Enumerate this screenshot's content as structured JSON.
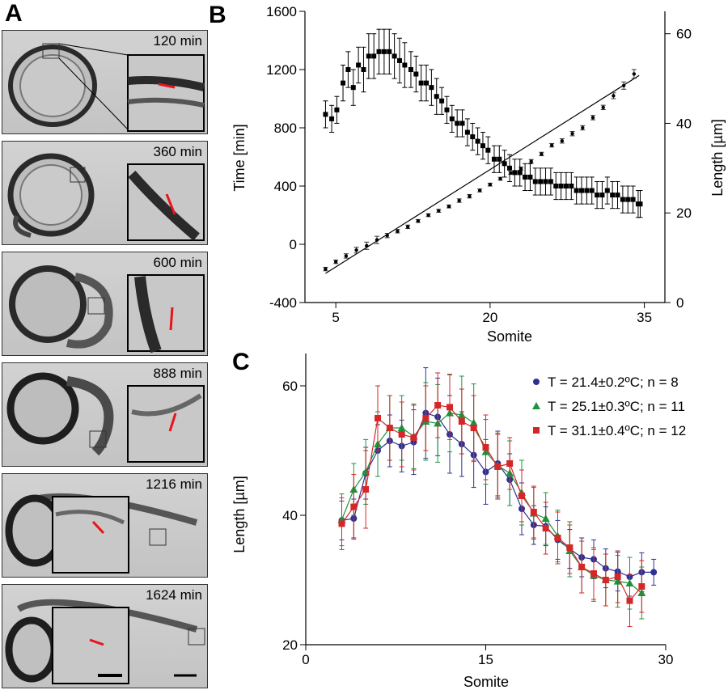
{
  "panels": {
    "a": "A",
    "b": "B",
    "c": "C"
  },
  "micrographs": [
    {
      "label": "120 min"
    },
    {
      "label": "360 min"
    },
    {
      "label": "600 min"
    },
    {
      "label": "888 min"
    },
    {
      "label": "1216 min"
    },
    {
      "label": "1624 min"
    }
  ],
  "chart_data": [
    {
      "type": "scatter",
      "panel": "B",
      "xlabel": "Somite",
      "ylabel": "Time [min]",
      "y2label": "Length [µm]",
      "xlim": [
        2,
        37
      ],
      "ylim": [
        -400,
        1600
      ],
      "y2lim": [
        0,
        65
      ],
      "xticks": [
        5,
        20,
        35
      ],
      "yticks": [
        -400,
        0,
        400,
        800,
        1200,
        1600
      ],
      "y2ticks": [
        0,
        20,
        40,
        60
      ],
      "series": [
        {
          "axis": "left",
          "marker": "dot",
          "x": [
            4,
            5,
            6,
            7,
            8,
            9,
            10,
            11,
            12,
            13,
            14,
            15,
            16,
            17,
            18,
            19,
            20,
            21,
            22,
            23,
            24,
            25,
            26,
            27,
            28,
            29,
            30,
            31,
            32,
            33,
            34
          ],
          "y": [
            -170,
            -120,
            -80,
            -40,
            -10,
            30,
            60,
            90,
            120,
            160,
            200,
            230,
            260,
            300,
            330,
            370,
            410,
            450,
            490,
            520,
            570,
            620,
            680,
            710,
            760,
            800,
            870,
            940,
            1020,
            1090,
            1170
          ],
          "err": [
            12,
            12,
            15,
            20,
            25,
            25,
            15,
            12,
            12,
            10,
            10,
            10,
            10,
            12,
            12,
            10,
            10,
            10,
            10,
            10,
            12,
            12,
            12,
            15,
            15,
            15,
            15,
            15,
            20,
            25,
            30
          ],
          "fit": [
            [
              4,
              -200
            ],
            [
              34.5,
              1160
            ]
          ]
        },
        {
          "axis": "right",
          "marker": "square",
          "x": [
            4,
            4.6,
            5.1,
            5.7,
            6.2,
            6.7,
            7.2,
            7.7,
            8.2,
            8.7,
            9.2,
            9.7,
            10.2,
            10.7,
            11.2,
            11.7,
            12.3,
            12.8,
            13.3,
            13.8,
            14.3,
            14.8,
            15.3,
            15.8,
            16.3,
            16.8,
            17.3,
            17.8,
            18.3,
            18.8,
            19.3,
            19.8,
            20.4,
            20.9,
            21.4,
            21.9,
            22.4,
            22.9,
            23.4,
            23.9,
            24.4,
            24.9,
            25.4,
            25.9,
            26.4,
            26.9,
            27.4,
            27.9,
            28.4,
            28.9,
            29.4,
            29.9,
            30.4,
            30.9,
            31.4,
            31.9,
            32.4,
            32.9,
            33.4,
            33.9,
            34.4,
            34.6
          ],
          "y": [
            42,
            41,
            43,
            49,
            52,
            48,
            53,
            52,
            55,
            55,
            56,
            56,
            56,
            55,
            54,
            53,
            52,
            51,
            49,
            49,
            48,
            46,
            45,
            43,
            41,
            40,
            40,
            38,
            37,
            36,
            35,
            34,
            32,
            32,
            31,
            30,
            29,
            29,
            28,
            28,
            27,
            27,
            27,
            27,
            26,
            26,
            26,
            26,
            25,
            25,
            25,
            25,
            24,
            24,
            25,
            24,
            24,
            23,
            23,
            23,
            22,
            22
          ],
          "err": [
            3,
            3,
            3,
            4,
            4,
            4,
            4,
            5,
            5,
            5,
            5,
            5,
            5,
            5,
            5,
            5,
            4,
            4,
            4,
            4,
            4,
            4,
            3,
            3,
            3,
            3,
            3,
            3,
            3,
            3,
            3,
            3,
            3,
            3,
            3,
            3,
            3,
            3,
            3,
            3,
            3,
            3,
            3,
            3,
            3,
            3,
            3,
            3,
            3,
            3,
            3,
            3,
            3,
            3,
            3,
            3,
            3,
            3,
            3,
            3,
            3,
            3
          ]
        }
      ]
    },
    {
      "type": "line",
      "panel": "C",
      "xlabel": "Somite",
      "ylabel": "Length [µm]",
      "xlim": [
        0,
        30
      ],
      "ylim": [
        20,
        65
      ],
      "xticks": [
        0,
        15,
        30
      ],
      "yticks": [
        20,
        40,
        60
      ],
      "legend_position": "top-right",
      "series": [
        {
          "name": "T = 21.4±0.2ºC; n = 8",
          "color": "#2e3192",
          "marker": "circle",
          "x": [
            3,
            4,
            5,
            6,
            7,
            8,
            9,
            10,
            11,
            12,
            13,
            14,
            15,
            16,
            17,
            18,
            19,
            20,
            21,
            22,
            23,
            24,
            25,
            26,
            27,
            28,
            29
          ],
          "y": [
            39.2,
            39.5,
            46.5,
            50.0,
            51.5,
            50.7,
            51.3,
            55.8,
            55.2,
            52.5,
            51.0,
            49.3,
            46.7,
            48.0,
            45.5,
            41.0,
            38.5,
            38.3,
            36.2,
            34.8,
            33.5,
            33.2,
            31.8,
            31.3,
            30.5,
            31.2,
            31.2
          ],
          "err": [
            3,
            3,
            4,
            4,
            4,
            4,
            5,
            7,
            6,
            6,
            5,
            5,
            5,
            5,
            4,
            4,
            3,
            3,
            3,
            3,
            3,
            3,
            3,
            3,
            3,
            3,
            2
          ]
        },
        {
          "name": "T = 25.1±0.3ºC; n = 11",
          "color": "#1a9641",
          "marker": "triangle",
          "x": [
            3,
            4,
            5,
            6,
            7,
            8,
            9,
            10,
            11,
            12,
            13,
            14,
            15,
            16,
            17,
            18,
            19,
            20,
            21,
            22,
            23,
            24,
            25,
            26,
            27,
            28
          ],
          "y": [
            39.3,
            44.0,
            46.7,
            51.0,
            53.5,
            53.5,
            52.2,
            54.5,
            54.2,
            55.8,
            55.5,
            54.3,
            49.8,
            47.7,
            46.5,
            43.5,
            40.3,
            39.5,
            36.8,
            34.5,
            32.0,
            30.7,
            30.0,
            29.8,
            29.5,
            28.0
          ],
          "err": [
            4,
            4,
            5,
            5,
            5,
            5,
            5,
            6,
            6,
            6,
            6,
            6,
            5,
            5,
            5,
            5,
            4,
            4,
            4,
            4,
            4,
            4,
            4,
            4,
            4,
            4
          ]
        },
        {
          "name": "T = 31.1±0.4ºC; n = 12",
          "color": "#d62728",
          "marker": "square",
          "x": [
            3,
            4,
            5,
            6,
            7,
            8,
            9,
            10,
            11,
            12,
            13,
            14,
            15,
            16,
            17,
            18,
            19,
            20,
            21,
            22,
            23,
            24,
            25,
            26,
            27,
            28
          ],
          "y": [
            38.7,
            41.3,
            44.0,
            55.0,
            53.5,
            52.5,
            52.0,
            55.0,
            57.0,
            56.7,
            54.5,
            53.5,
            50.5,
            47.5,
            48.0,
            43.0,
            40.5,
            38.0,
            36.5,
            35.0,
            32.0,
            31.0,
            30.0,
            30.5,
            26.8,
            29.0
          ],
          "err": [
            4,
            5,
            6,
            5,
            5,
            5,
            5,
            5,
            5,
            5,
            5,
            5,
            5,
            5,
            4,
            4,
            4,
            4,
            4,
            4,
            4,
            4,
            4,
            4,
            4,
            4
          ]
        }
      ]
    }
  ]
}
